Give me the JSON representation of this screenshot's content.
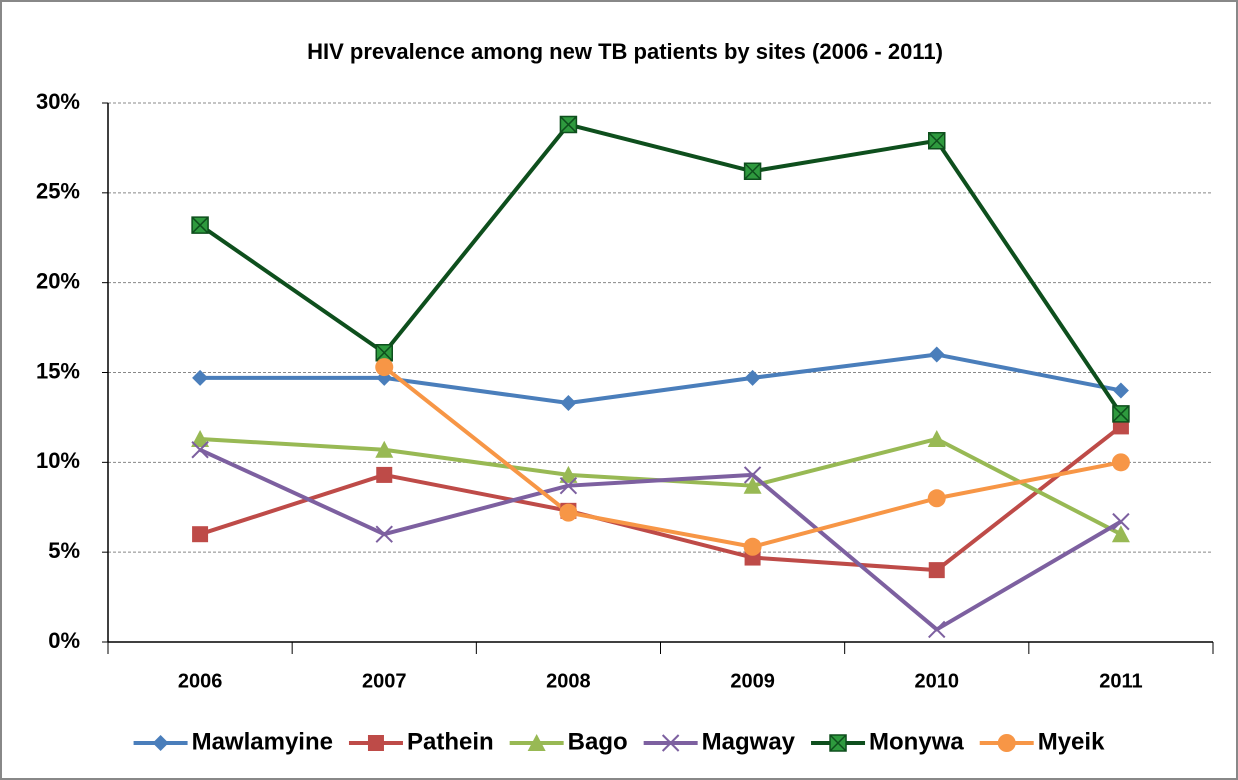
{
  "chart_data": {
    "type": "line",
    "title": "HIV prevalence among new TB patients by sites (2006 - 2011)",
    "categories": [
      "2006",
      "2007",
      "2008",
      "2009",
      "2010",
      "2011"
    ],
    "series": [
      {
        "name": "Mawlamyine",
        "color": "#4a7ebb",
        "marker": "diamond",
        "values": [
          14.7,
          14.7,
          13.3,
          14.7,
          16.0,
          14.0
        ]
      },
      {
        "name": "Pathein",
        "color": "#be4b48",
        "marker": "square",
        "values": [
          6.0,
          9.3,
          7.3,
          4.7,
          4.0,
          12.0
        ]
      },
      {
        "name": "Bago",
        "color": "#98b954",
        "marker": "triangle",
        "values": [
          11.3,
          10.7,
          9.3,
          8.7,
          11.3,
          6.0
        ]
      },
      {
        "name": "Magway",
        "color": "#7d60a0",
        "marker": "x",
        "values": [
          10.7,
          6.0,
          8.7,
          9.3,
          0.7,
          6.7
        ]
      },
      {
        "name": "Monywa",
        "color": "#0e4f1d",
        "marker": "boxed-x",
        "values": [
          23.2,
          16.1,
          28.8,
          26.2,
          27.9,
          12.7
        ]
      },
      {
        "name": "Myeik",
        "color": "#f79646",
        "marker": "circle",
        "values": [
          null,
          15.3,
          7.2,
          5.3,
          8.0,
          10.0
        ]
      }
    ],
    "ylim": [
      0,
      30
    ],
    "yticks": [
      {
        "value": 0,
        "label": "0%"
      },
      {
        "value": 5,
        "label": "5%"
      },
      {
        "value": 10,
        "label": "10%"
      },
      {
        "value": 15,
        "label": "15%"
      },
      {
        "value": 20,
        "label": "20%"
      },
      {
        "value": 25,
        "label": "25%"
      },
      {
        "value": 30,
        "label": "30%"
      }
    ],
    "grid": true,
    "legend": "bottom"
  }
}
